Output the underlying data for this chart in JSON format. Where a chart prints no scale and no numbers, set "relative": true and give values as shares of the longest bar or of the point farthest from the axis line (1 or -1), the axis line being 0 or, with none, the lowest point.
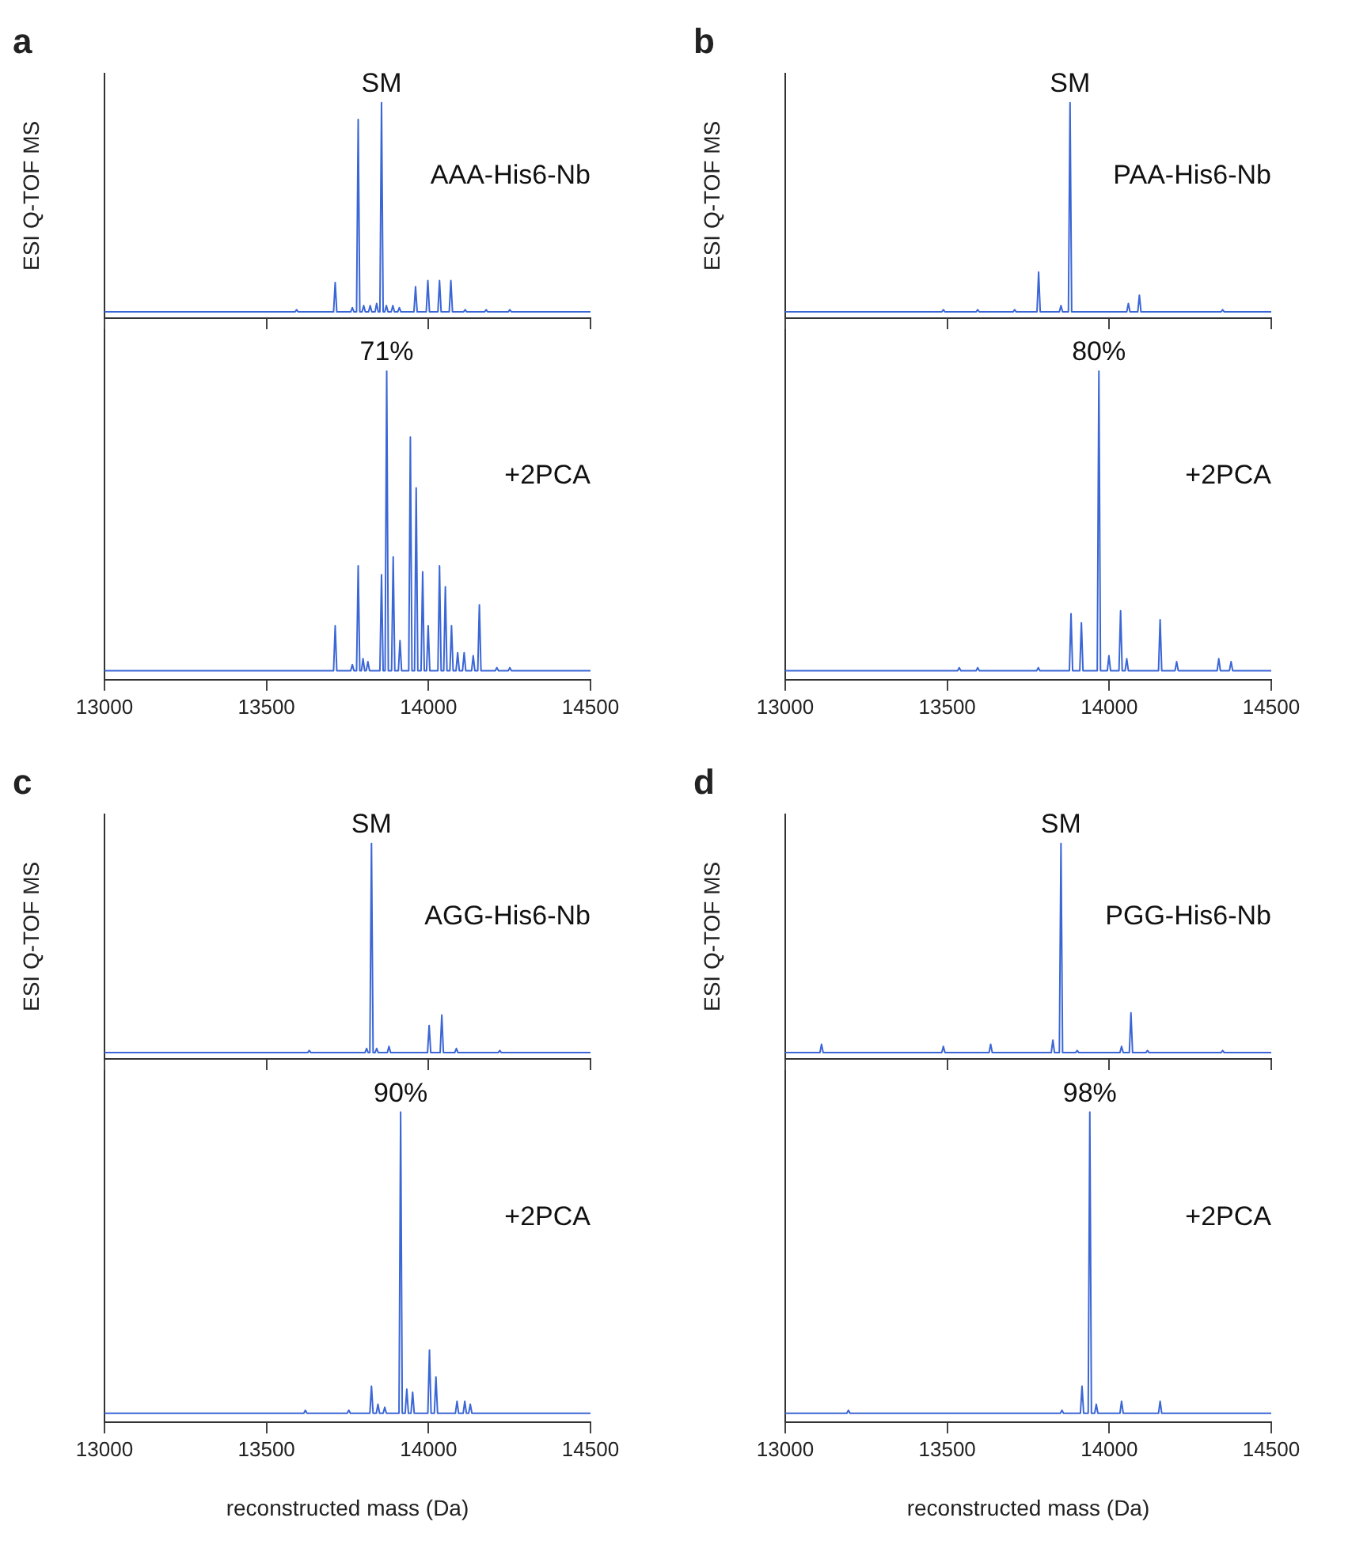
{
  "chart_data": [
    {
      "type": "line",
      "title": "a",
      "ylabel": "ESI Q-TOF MS",
      "relative": true,
      "color": "#3b66d6",
      "xlim": [
        13000,
        14500
      ],
      "xticks": [
        13000,
        13500,
        14000,
        14500
      ],
      "tick_labels": false,
      "x": [
        13000,
        13588,
        13593,
        13598,
        13707,
        13712,
        13717,
        13760,
        13765,
        13770,
        13778,
        13783,
        13788,
        13795,
        13800,
        13805,
        13815,
        13820,
        13825,
        13835,
        13840,
        13845,
        13850,
        13855,
        13860,
        13865,
        13870,
        13875,
        13885,
        13890,
        13895,
        13905,
        13910,
        13915,
        13955,
        13960,
        13965,
        13993,
        13998,
        14003,
        14029,
        14034,
        14039,
        14064,
        14069,
        14074,
        14108,
        14113,
        14118,
        14173,
        14178,
        14183,
        14246,
        14251,
        14256,
        14500
      ],
      "values": [
        0,
        0,
        0.01,
        0,
        0,
        0.14,
        0,
        0,
        0.02,
        0,
        0,
        0.92,
        0,
        0,
        0.03,
        0,
        0,
        0.03,
        0,
        0,
        0.04,
        0,
        0,
        1,
        0,
        0,
        0.03,
        0,
        0,
        0.03,
        0,
        0,
        0.02,
        0,
        0,
        0.12,
        0,
        0,
        0.15,
        0,
        0,
        0.15,
        0,
        0,
        0.15,
        0,
        0,
        0.01,
        0,
        0,
        0.01,
        0,
        0,
        0.01,
        0,
        0
      ],
      "annotations": [
        "AAA-His6-Nb",
        {
          "text": "SM",
          "x": 13855,
          "y": 1
        }
      ]
    },
    {
      "type": "line",
      "relative": true,
      "color": "#3b66d6",
      "xlim": [
        13000,
        14500
      ],
      "xticks": [
        13000,
        13500,
        14000,
        14500
      ],
      "tick_labels": "x",
      "x": [
        13000,
        13707,
        13712,
        13717,
        13760,
        13765,
        13770,
        13778,
        13783,
        13788,
        13793,
        13798,
        13803,
        13808,
        13813,
        13818,
        13850,
        13855,
        13860,
        13866,
        13871,
        13876,
        13886,
        13891,
        13896,
        13907,
        13912,
        13917,
        13939,
        13944,
        13949,
        13957,
        13962,
        13967,
        13977,
        13982,
        13987,
        13994,
        13999,
        14004,
        14029,
        14034,
        14039,
        14047,
        14052,
        14057,
        14066,
        14071,
        14076,
        14085,
        14090,
        14095,
        14105,
        14110,
        14115,
        14133,
        14138,
        14143,
        14152,
        14157,
        14162,
        14206,
        14211,
        14216,
        14246,
        14251,
        14256,
        14500
      ],
      "values": [
        0,
        0,
        0.15,
        0,
        0,
        0.02,
        0,
        0,
        0.35,
        0,
        0,
        0.04,
        0,
        0,
        0.03,
        0,
        0,
        0.32,
        0,
        0,
        1,
        0,
        0,
        0.38,
        0,
        0,
        0.1,
        0,
        0,
        0.78,
        0,
        0,
        0.61,
        0,
        0,
        0.33,
        0,
        0,
        0.15,
        0,
        0,
        0.35,
        0,
        0,
        0.28,
        0,
        0,
        0.15,
        0,
        0,
        0.06,
        0,
        0,
        0.06,
        0,
        0,
        0.05,
        0,
        0,
        0.22,
        0,
        0,
        0.01,
        0,
        0,
        0.01,
        0,
        0
      ],
      "annotations": [
        {
          "text": "71%",
          "x": 13871,
          "y": 1
        },
        "+2PCA"
      ]
    },
    {
      "type": "line",
      "title": "b",
      "ylabel": "ESI Q-TOF MS",
      "relative": true,
      "color": "#3b66d6",
      "xlim": [
        13000,
        14500
      ],
      "xticks": [
        13000,
        13500,
        14000,
        14500
      ],
      "tick_labels": false,
      "x": [
        13000,
        13483,
        13488,
        13493,
        13589,
        13594,
        13599,
        13703,
        13708,
        13713,
        13777,
        13782,
        13787,
        13846,
        13851,
        13856,
        13874,
        13879,
        13884,
        14054,
        14059,
        14064,
        14088,
        14093,
        14098,
        14345,
        14350,
        14355,
        14500
      ],
      "values": [
        0,
        0,
        0.01,
        0,
        0,
        0.01,
        0,
        0,
        0.01,
        0,
        0,
        0.19,
        0,
        0,
        0.03,
        0,
        0,
        1,
        0,
        0,
        0.04,
        0,
        0,
        0.08,
        0,
        0,
        0.01,
        0,
        0
      ],
      "annotations": [
        "PAA-His6-Nb",
        {
          "text": "SM",
          "x": 13879,
          "y": 1
        }
      ]
    },
    {
      "type": "line",
      "relative": true,
      "color": "#3b66d6",
      "xlim": [
        13000,
        14500
      ],
      "xticks": [
        13000,
        13500,
        14000,
        14500
      ],
      "tick_labels": "x",
      "x": [
        13000,
        13532,
        13537,
        13542,
        13589,
        13594,
        13599,
        13776,
        13781,
        13786,
        13877,
        13882,
        13887,
        13909,
        13914,
        13919,
        13963,
        13968,
        13973,
        13994,
        13999,
        14004,
        14030,
        14035,
        14040,
        14049,
        14054,
        14059,
        14152,
        14157,
        14162,
        14203,
        14208,
        14213,
        14333,
        14338,
        14343,
        14371,
        14376,
        14381,
        14500
      ],
      "values": [
        0,
        0,
        0.01,
        0,
        0,
        0.01,
        0,
        0,
        0.01,
        0,
        0,
        0.19,
        0,
        0,
        0.16,
        0,
        0,
        1,
        0,
        0,
        0.05,
        0,
        0,
        0.2,
        0,
        0,
        0.04,
        0,
        0,
        0.17,
        0,
        0,
        0.03,
        0,
        0,
        0.04,
        0,
        0,
        0.03,
        0,
        0
      ],
      "annotations": [
        {
          "text": "80%",
          "x": 13968,
          "y": 1
        },
        "+2PCA"
      ]
    },
    {
      "type": "line",
      "title": "c",
      "ylabel": "ESI Q-TOF MS",
      "relative": true,
      "color": "#3b66d6",
      "xlim": [
        13000,
        14500
      ],
      "xticks": [
        13000,
        13500,
        14000,
        14500
      ],
      "tick_labels": false,
      "x": [
        13000,
        13627,
        13632,
        13637,
        13804,
        13809,
        13814,
        13819,
        13824,
        13829,
        13835,
        13840,
        13845,
        13873,
        13878,
        13883,
        13997,
        14002,
        14007,
        14036,
        14041,
        14046,
        14081,
        14086,
        14091,
        14215,
        14220,
        14225,
        14500
      ],
      "values": [
        0,
        0,
        0.01,
        0,
        0,
        0.02,
        0,
        0,
        1,
        0,
        0,
        0.02,
        0,
        0,
        0.03,
        0,
        0,
        0.13,
        0,
        0,
        0.18,
        0,
        0,
        0.02,
        0,
        0,
        0.01,
        0,
        0
      ],
      "annotations": [
        "AGG-His6-Nb",
        {
          "text": "SM",
          "x": 13824,
          "y": 1
        }
      ]
    },
    {
      "type": "line",
      "relative": true,
      "color": "#3b66d6",
      "xlim": [
        13000,
        14500
      ],
      "xticks": [
        13000,
        13500,
        14000,
        14500
      ],
      "tick_labels": "x",
      "xlabel": "reconstructed mass (Da)",
      "x": [
        13000,
        13615,
        13620,
        13625,
        13749,
        13754,
        13759,
        13819,
        13824,
        13829,
        13839,
        13844,
        13849,
        13860,
        13865,
        13870,
        13909,
        13914,
        13919,
        13928,
        13933,
        13938,
        13946,
        13951,
        13956,
        13998,
        14003,
        14008,
        14018,
        14023,
        14028,
        14083,
        14088,
        14093,
        14107,
        14112,
        14117,
        14124,
        14129,
        14134,
        14500
      ],
      "values": [
        0,
        0,
        0.01,
        0,
        0,
        0.01,
        0,
        0,
        0.09,
        0,
        0,
        0.03,
        0,
        0,
        0.02,
        0,
        0,
        1,
        0,
        0,
        0.08,
        0,
        0,
        0.07,
        0,
        0,
        0.21,
        0,
        0,
        0.12,
        0,
        0,
        0.04,
        0,
        0,
        0.04,
        0,
        0,
        0.03,
        0,
        0
      ],
      "annotations": [
        {
          "text": "90%",
          "x": 13914,
          "y": 1
        },
        "+2PCA"
      ]
    },
    {
      "type": "line",
      "title": "d",
      "ylabel": "ESI Q-TOF MS",
      "relative": true,
      "color": "#3b66d6",
      "xlim": [
        13000,
        14500
      ],
      "xticks": [
        13000,
        13500,
        14000,
        14500
      ],
      "tick_labels": false,
      "x": [
        13000,
        13107,
        13112,
        13117,
        13483,
        13488,
        13493,
        13629,
        13634,
        13639,
        13821,
        13826,
        13831,
        13846,
        13851,
        13856,
        13896,
        13901,
        13906,
        14033,
        14038,
        14043,
        14062,
        14067,
        14072,
        14113,
        14118,
        14123,
        14345,
        14350,
        14355,
        14500
      ],
      "values": [
        0,
        0,
        0.04,
        0,
        0,
        0.03,
        0,
        0,
        0.04,
        0,
        0,
        0.06,
        0,
        0,
        1,
        0,
        0,
        0.01,
        0,
        0,
        0.03,
        0,
        0,
        0.19,
        0,
        0,
        0.01,
        0,
        0,
        0.01,
        0,
        0
      ],
      "annotations": [
        "PGG-His6-Nb",
        {
          "text": "SM",
          "x": 13851,
          "y": 1
        }
      ]
    },
    {
      "type": "line",
      "relative": true,
      "color": "#3b66d6",
      "xlim": [
        13000,
        14500
      ],
      "xticks": [
        13000,
        13500,
        14000,
        14500
      ],
      "tick_labels": "x",
      "xlabel": "reconstructed mass (Da)",
      "x": [
        13000,
        13190,
        13195,
        13200,
        13849,
        13854,
        13859,
        13911,
        13916,
        13921,
        13935,
        13940,
        13945,
        13955,
        13960,
        13965,
        14033,
        14038,
        14043,
        14152,
        14157,
        14162,
        14500
      ],
      "values": [
        0,
        0,
        0.01,
        0,
        0,
        0.01,
        0,
        0,
        0.09,
        0,
        0,
        1,
        0,
        0,
        0.03,
        0,
        0,
        0.04,
        0,
        0,
        0.04,
        0,
        0
      ],
      "annotations": [
        {
          "text": "98%",
          "x": 13940,
          "y": 1
        },
        "+2PCA"
      ]
    }
  ]
}
